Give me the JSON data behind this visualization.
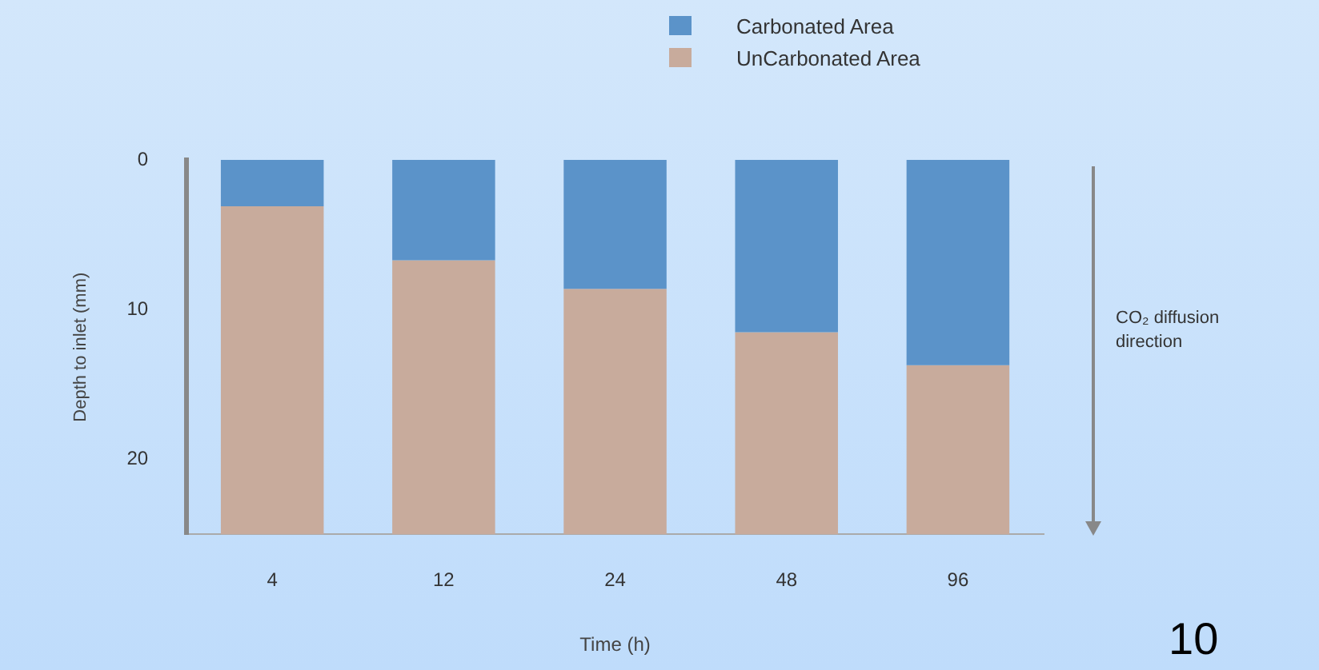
{
  "chart_data": {
    "type": "bar",
    "stacked": true,
    "xlabel": "Time (h)",
    "ylabel": "Depth to inlet (mm)",
    "categories": [
      "4",
      "12",
      "24",
      "48",
      "96"
    ],
    "series": [
      {
        "name": "Carbonated Area",
        "color": "#5b93c9",
        "values": [
          3.1,
          6.7,
          8.6,
          11.5,
          13.7
        ]
      },
      {
        "name": "UnCarbonated Area",
        "color": "#c8ab9c",
        "values": [
          21.9,
          18.3,
          16.4,
          13.5,
          11.3
        ]
      }
    ],
    "ylim": [
      25,
      0
    ],
    "yticks": [
      0,
      10,
      20
    ],
    "grid": false,
    "legend": "top right",
    "annotations": [
      "CO₂ diffusion direction",
      "10"
    ]
  }
}
